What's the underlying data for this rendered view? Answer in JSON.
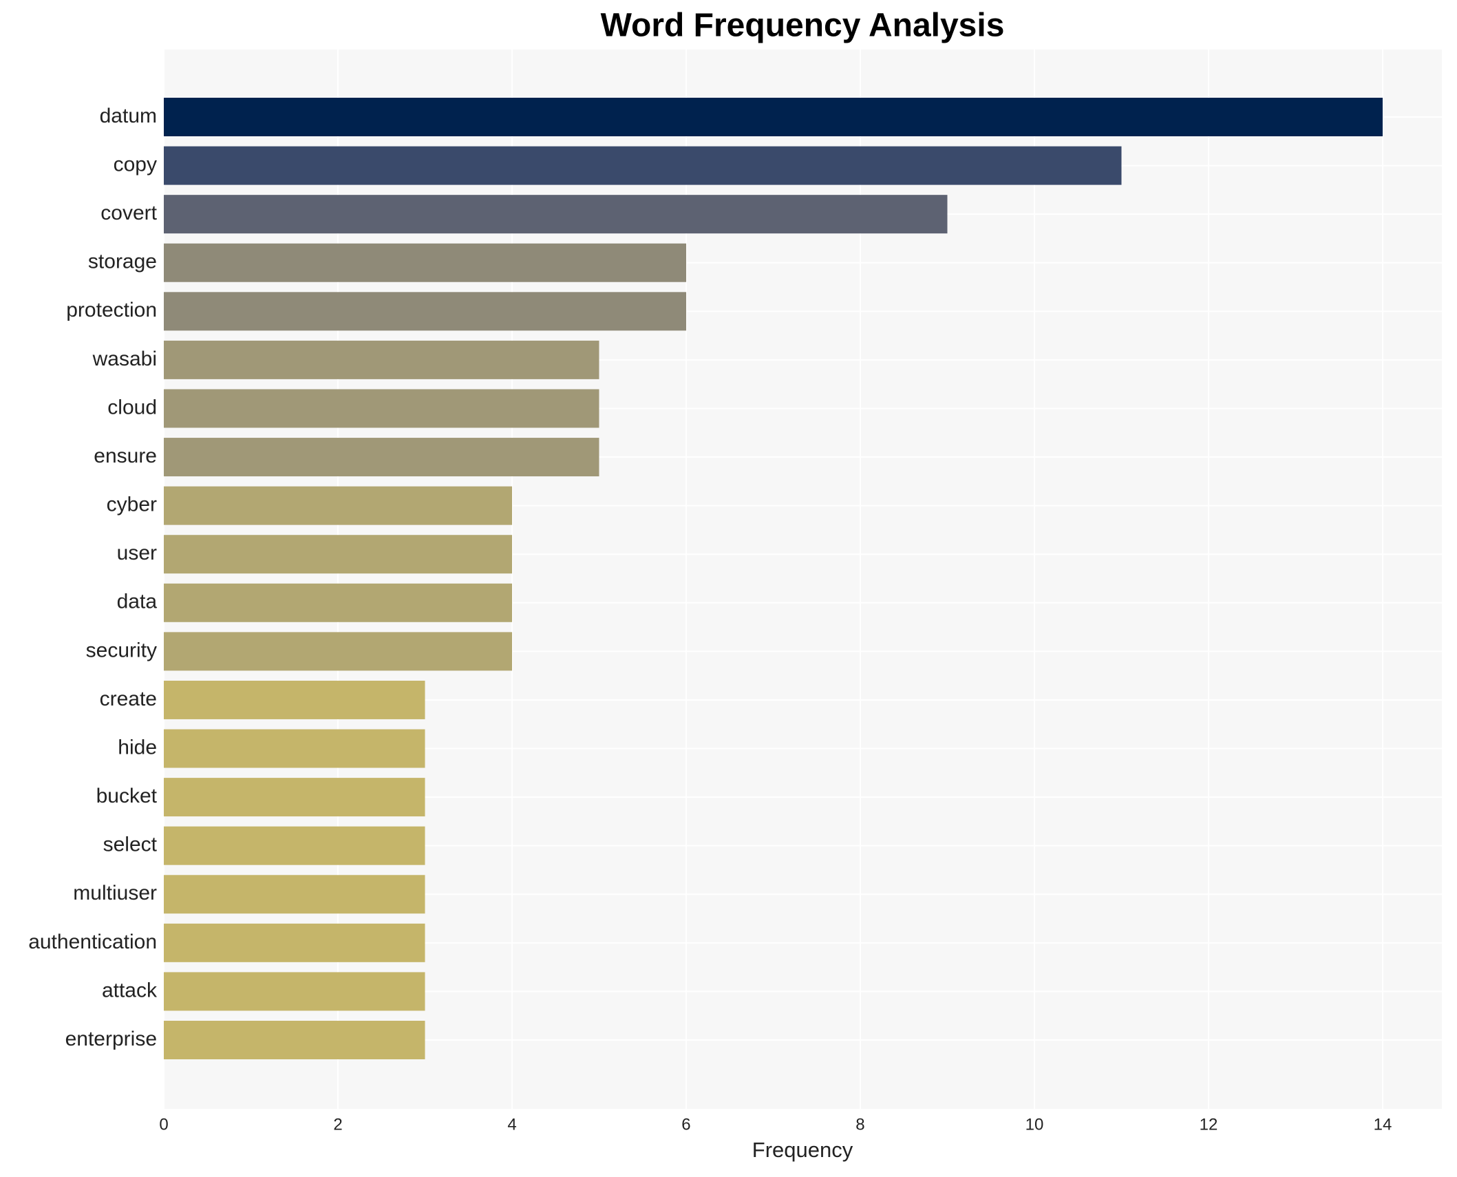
{
  "chart_data": {
    "type": "bar",
    "orientation": "horizontal",
    "title": "Word Frequency Analysis",
    "x_label": "Frequency",
    "categories": [
      "datum",
      "copy",
      "covert",
      "storage",
      "protection",
      "wasabi",
      "cloud",
      "ensure",
      "cyber",
      "user",
      "data",
      "security",
      "create",
      "hide",
      "bucket",
      "select",
      "multiuser",
      "authentication",
      "attack",
      "enterprise"
    ],
    "values": [
      14,
      11,
      9,
      6,
      6,
      5,
      5,
      5,
      4,
      4,
      4,
      4,
      3,
      3,
      3,
      3,
      3,
      3,
      3,
      3
    ],
    "colors": [
      "#00224e",
      "#3a4a6b",
      "#5d6272",
      "#8f8a78",
      "#8f8a78",
      "#a09877",
      "#a09877",
      "#a09877",
      "#b2a772",
      "#b2a772",
      "#b2a772",
      "#b2a772",
      "#c5b56a",
      "#c5b56a",
      "#c5b56a",
      "#c5b56a",
      "#c5b56a",
      "#c5b56a",
      "#c5b56a",
      "#c5b56a"
    ],
    "xlim": [
      0,
      14.68
    ],
    "xticks": [
      0,
      2,
      4,
      6,
      8,
      10,
      12,
      14
    ],
    "grid": true
  }
}
